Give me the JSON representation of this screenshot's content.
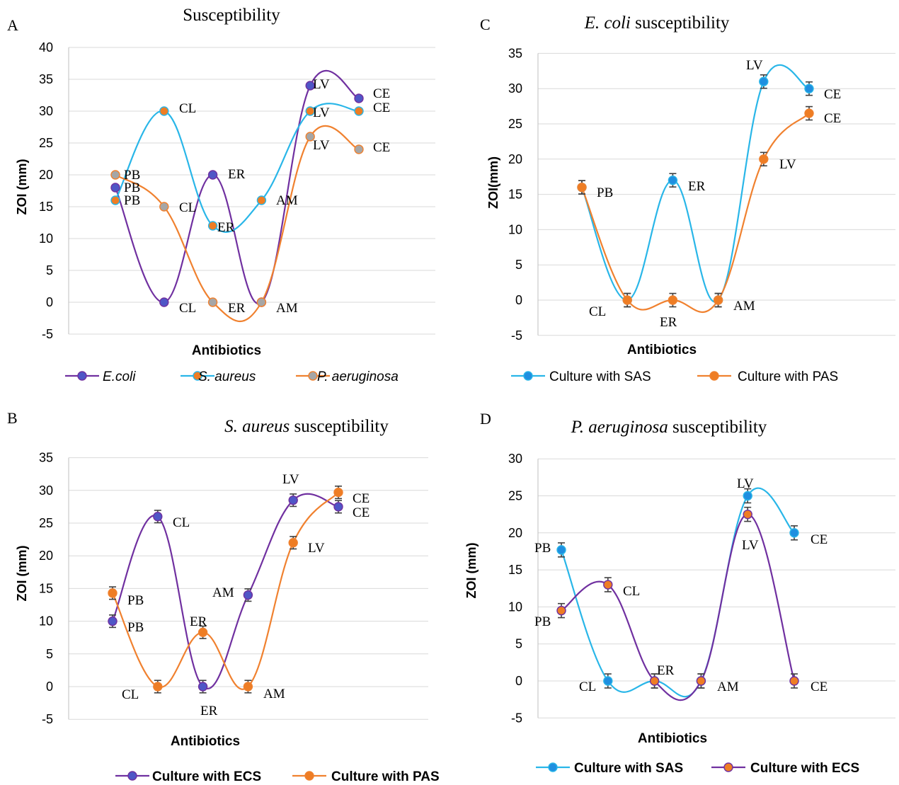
{
  "colors": {
    "purple": "#7030a0",
    "purple_fill": "#4f56c6",
    "blue": "#29b6e8",
    "blue_fill": "#1f8fe0",
    "orange": "#f0812f",
    "orange_fill": "#ee7d24",
    "gray_fill": "#a6a6a6",
    "errorbar": "#404040"
  },
  "chart_data": [
    {
      "panel": "A",
      "type": "line",
      "title": "Susceptibility",
      "title_italic_part": "",
      "xlabel": "Antibiotics",
      "ylabel": "ZOI (mm)",
      "ylim": [
        -5,
        40
      ],
      "yticks": [
        -5,
        0,
        5,
        10,
        15,
        20,
        25,
        30,
        35,
        40
      ],
      "categories": [
        "PB",
        "CL",
        "ER",
        "AM",
        "LV",
        "CE"
      ],
      "legend_position": "bottom",
      "grid": true,
      "series": [
        {
          "name": "E.coli",
          "italic": true,
          "values": [
            18,
            0,
            20,
            0,
            34,
            32
          ],
          "line": "purple",
          "fill": "purple_fill",
          "errors": false
        },
        {
          "name": "S. aureus",
          "italic": true,
          "values": [
            16,
            30,
            12,
            16,
            30,
            30
          ],
          "line": "blue",
          "fill": "orange_fill",
          "errors": false
        },
        {
          "name": "P. aeruginosa",
          "italic": true,
          "values": [
            20,
            15,
            0,
            0,
            26,
            24
          ],
          "line": "orange",
          "fill": "gray_fill",
          "errors": false
        }
      ],
      "point_labels": [
        {
          "text": "PB",
          "s": 0,
          "i": 0
        },
        {
          "text": "CL",
          "s": 0,
          "i": 1
        },
        {
          "text": "ER",
          "s": 0,
          "i": 2
        },
        {
          "text": "LV",
          "s": 0,
          "i": 4
        },
        {
          "text": "CE",
          "s": 0,
          "i": 5
        },
        {
          "text": "PB",
          "s": 1,
          "i": 0
        },
        {
          "text": "CL",
          "s": 1,
          "i": 1
        },
        {
          "text": "ER",
          "s": 1,
          "i": 2
        },
        {
          "text": "AM",
          "s": 1,
          "i": 3
        },
        {
          "text": "LV",
          "s": 1,
          "i": 4
        },
        {
          "text": "CE",
          "s": 1,
          "i": 5
        },
        {
          "text": "PB",
          "s": 2,
          "i": 0
        },
        {
          "text": "CL",
          "s": 2,
          "i": 1
        },
        {
          "text": "ER",
          "s": 2,
          "i": 2
        },
        {
          "text": "AM",
          "s": 2,
          "i": 3
        },
        {
          "text": "LV",
          "s": 2,
          "i": 4
        },
        {
          "text": "CE",
          "s": 2,
          "i": 5
        }
      ]
    },
    {
      "panel": "C",
      "type": "line",
      "title": " susceptibility",
      "title_italic_part": "E. coli",
      "xlabel": "Antibiotics",
      "ylabel": "ZOI(mm)",
      "ylim": [
        -5,
        35
      ],
      "yticks": [
        -5,
        0,
        5,
        10,
        15,
        20,
        25,
        30,
        35
      ],
      "categories": [
        "PB",
        "CL",
        "ER",
        "AM",
        "LV",
        "CE"
      ],
      "legend_position": "bottom",
      "grid": true,
      "series": [
        {
          "name": "Culture with SAS",
          "italic": false,
          "values": [
            16,
            0,
            17,
            0,
            31,
            30
          ],
          "line": "blue",
          "fill": "blue_fill",
          "errors": true
        },
        {
          "name": "Culture with PAS",
          "italic": false,
          "values": [
            16,
            0,
            0,
            0,
            20,
            26.5
          ],
          "line": "orange",
          "fill": "orange_fill",
          "errors": true
        }
      ],
      "point_labels": [
        {
          "text": "PB",
          "s": 1,
          "i": 0
        },
        {
          "text": "CL",
          "s": 1,
          "i": 1
        },
        {
          "text": "ER",
          "s": 0,
          "i": 2
        },
        {
          "text": "ER",
          "s": 1,
          "i": 2
        },
        {
          "text": "AM",
          "s": 1,
          "i": 3
        },
        {
          "text": "LV",
          "s": 0,
          "i": 4
        },
        {
          "text": "LV",
          "s": 1,
          "i": 4
        },
        {
          "text": "CE",
          "s": 0,
          "i": 5
        },
        {
          "text": "CE",
          "s": 1,
          "i": 5
        }
      ]
    },
    {
      "panel": "B",
      "type": "line",
      "title": " susceptibility",
      "title_italic_part": "S. aureus",
      "xlabel": "Antibiotics",
      "ylabel": "ZOI (mm)",
      "ylim": [
        -5,
        35
      ],
      "yticks": [
        -5,
        0,
        5,
        10,
        15,
        20,
        25,
        30,
        35
      ],
      "categories": [
        "PB",
        "CL",
        "ER",
        "AM",
        "LV",
        "CE"
      ],
      "legend_position": "bottom",
      "grid": true,
      "series": [
        {
          "name": "Culture with ECS",
          "italic": false,
          "bold": true,
          "values": [
            10,
            26,
            0,
            14,
            28.5,
            27.5
          ],
          "line": "purple",
          "fill": "purple_fill",
          "errors": true
        },
        {
          "name": "Culture with PAS",
          "italic": false,
          "bold": true,
          "values": [
            14.3,
            0,
            8.3,
            0,
            22,
            29.7
          ],
          "line": "orange",
          "fill": "orange_fill",
          "errors": true
        }
      ],
      "point_labels": [
        {
          "text": "PB",
          "s": 1,
          "i": 0
        },
        {
          "text": "PB",
          "s": 0,
          "i": 0
        },
        {
          "text": "CL",
          "s": 0,
          "i": 1
        },
        {
          "text": "CL",
          "s": 1,
          "i": 1
        },
        {
          "text": "ER",
          "s": 1,
          "i": 2
        },
        {
          "text": "ER",
          "s": 0,
          "i": 2
        },
        {
          "text": "AM",
          "s": 0,
          "i": 3
        },
        {
          "text": "AM",
          "s": 1,
          "i": 3
        },
        {
          "text": "LV",
          "s": 0,
          "i": 4
        },
        {
          "text": "LV",
          "s": 1,
          "i": 4
        },
        {
          "text": "CE",
          "s": 1,
          "i": 5
        },
        {
          "text": "CE",
          "s": 0,
          "i": 5
        }
      ]
    },
    {
      "panel": "D",
      "type": "line",
      "title": " susceptibility",
      "title_italic_part": "P. aeruginosa",
      "xlabel": "Antibiotics",
      "ylabel": "ZOI (mm)",
      "ylim": [
        -5,
        30
      ],
      "yticks": [
        -5,
        0,
        5,
        10,
        15,
        20,
        25,
        30
      ],
      "categories": [
        "PB",
        "CL",
        "ER",
        "AM",
        "LV",
        "CE"
      ],
      "legend_position": "bottom",
      "grid": true,
      "series": [
        {
          "name": "Culture with SAS",
          "italic": false,
          "bold": true,
          "values": [
            17.7,
            0,
            0,
            0,
            25,
            20
          ],
          "line": "blue",
          "fill": "blue_fill",
          "errors": true
        },
        {
          "name": "Culture with ECS",
          "italic": false,
          "bold": true,
          "values": [
            9.5,
            13,
            0,
            0,
            22.5,
            0
          ],
          "line": "purple",
          "fill": "orange_fill",
          "errors": true
        }
      ],
      "point_labels": [
        {
          "text": "PB",
          "s": 0,
          "i": 0
        },
        {
          "text": "PB",
          "s": 1,
          "i": 0
        },
        {
          "text": "CL",
          "s": 1,
          "i": 1
        },
        {
          "text": "CL",
          "s": 0,
          "i": 1
        },
        {
          "text": "ER",
          "s": 0,
          "i": 2
        },
        {
          "text": "AM",
          "s": 0,
          "i": 3
        },
        {
          "text": "LV",
          "s": 0,
          "i": 4
        },
        {
          "text": "LV",
          "s": 1,
          "i": 4
        },
        {
          "text": "CE",
          "s": 0,
          "i": 5
        },
        {
          "text": "CE",
          "s": 1,
          "i": 5
        }
      ]
    }
  ]
}
